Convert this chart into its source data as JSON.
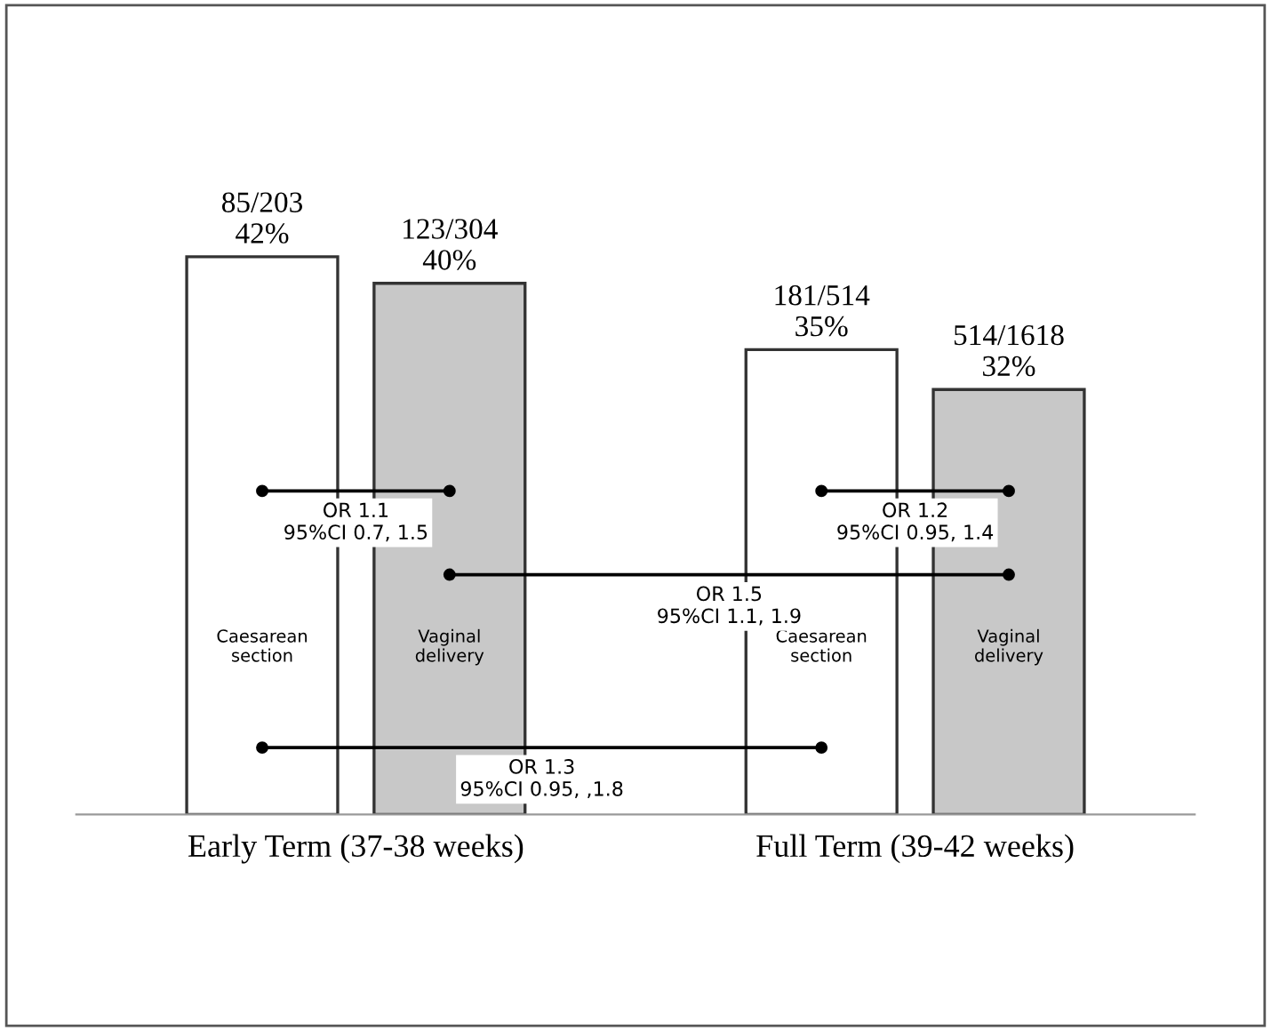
{
  "chart_data": {
    "type": "bar",
    "categories": [
      "Early Term (37-38 weeks)",
      "Full Term (39-42 weeks)"
    ],
    "series": [
      {
        "name": "Caesarean section",
        "color": "#ffffff",
        "values": [
          42,
          35
        ],
        "value_labels": [
          "85/203\n42%",
          "181/514\n35%"
        ]
      },
      {
        "name": "Vaginal delivery",
        "color": "#c8c8c8",
        "values": [
          40,
          32
        ],
        "value_labels": [
          "123/304\n40%",
          "514/1618\n32%"
        ]
      }
    ],
    "annotations": [
      "OR 1.1\n95%CI 0.7, 1.5",
      "OR 1.2\n95%CI 0.95, 1.4",
      "OR 1.5\n95%CI 1.1, 1.9",
      "OR 1.3\n95%CI 0.95, ,1.8"
    ],
    "grid": false,
    "legend": false
  }
}
